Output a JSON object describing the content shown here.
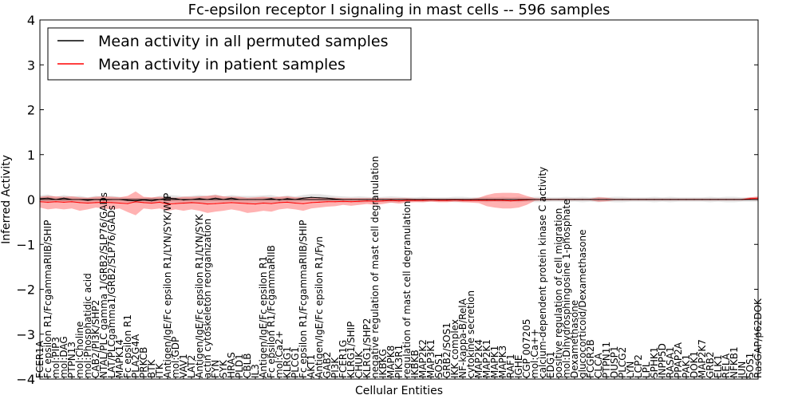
{
  "chart_data": {
    "type": "line",
    "title": "Fc-epsilon receptor I signaling in mast cells -- 596 samples",
    "xlabel": "Cellular Entities",
    "ylabel": "Inferred Activity",
    "ylim": [
      -4,
      4
    ],
    "yticks": [
      "−4",
      "−3",
      "−2",
      "−1",
      "0",
      "1",
      "2",
      "3",
      "4"
    ],
    "legend": {
      "placement": "top-left",
      "entries": [
        {
          "label": "Mean activity in all permuted samples",
          "color": "#000000"
        },
        {
          "label": "Mean activity in patient samples",
          "color": "#ff0000"
        }
      ]
    },
    "categories": [
      "FCER1A",
      "Fc epsilon R1/FcgammaRIIB/SHIP",
      "mol:PIP3",
      "mol:DAG",
      "PTPN13",
      "mol:Choline",
      "mol:Phosphatidic acid",
      "CAB2/PI3K/SHP2",
      "NTAL/PLC gamma 1/GRB2/SLP76/GADs",
      "LAT/PLCgamma1/GRB2/SLP76/GADs",
      "MAPK14",
      "Fc epsilon R1",
      "PLA2G4A",
      "PRKCB",
      "BTK",
      "ITK",
      "Antigen/IgE/Fc epsilon R1/LYN/SYK/WIP",
      "mol:GDP",
      "VAV1",
      "LAT2",
      "Antigen/IgE/Fc epsilon R1/LYN/SYK",
      "actin cytoskeleton reorganization",
      "FYN",
      "SYK",
      "HRAS",
      "PLD1",
      "CBLB",
      "IL3",
      "Antigen/IgE/Fc epsilon R1",
      "Fc epsilon R1/FcgammaRIIB",
      "mol:Ca2+",
      "KLRG1",
      "PLCG1",
      "Fc epsilon R1/FcgammaRIIB/SHIP",
      "AKT1",
      "Antigen/IgE/Fc epsilon R1/Fyn",
      "GAB2",
      "PI3K",
      "FCER1G",
      "KLRG1/SHIP",
      "CHUK",
      "KLRG1/SHP2",
      "negative regulation of mast cell degranulation",
      "IKBKG",
      "MAPK8",
      "PIK3R1",
      "regulation of mast cell degranulation",
      "IKBKB",
      "MAP2K2",
      "MAP3K1",
      "SOS1",
      "GRB2/SOS1",
      "IKK complex",
      "NF-kappa-B/RelA",
      "cytokine secretion",
      "MAP2K4",
      "MAP2K1",
      "MAPK1",
      "MAPK3",
      "RAF1",
      "IGHE",
      "CGP 007205",
      "mol:Ca++",
      "calcium-dependent protein kinase C activity",
      "EDG1",
      "positive regulation of cell migration",
      "mol:Dihydrosphingosine 1-phosphate",
      "Dexamethasone",
      "glucocorticoid/Dexamethasone",
      "FCGR2B",
      "CLCA",
      "PTPN11",
      "DUSP1",
      "PLCG2",
      "LYN",
      "LCP2",
      "LPL",
      "SPHK1",
      "INPP5D",
      "RASA1",
      "PPAP2A",
      "PAK1",
      "DOK1",
      "MAP2K7",
      "GRB2",
      "ELK1",
      "RELA",
      "NFKB1",
      "JUN",
      "SOS1",
      "RasGAP/p62DOK"
    ],
    "visible_tick_labels": [
      "FCER1A",
      "Fc epsilon R1/FcgammaRIIB/SHIP",
      "mol:PIP3",
      "mol:DAG",
      "PTPN13",
      "mol:Choline",
      "mol:Phosphatidic acid",
      "CAB2/PI3K/SHP2",
      "NTAL/PLC gamma 1/GRB2/SLP76/GADs",
      "LAT/PLCgamma1/GRB2/SLP76/GADs",
      "MAPK14",
      "Fc epsilon R1",
      "PLA2G4A",
      "PRKCB",
      "BTK",
      "ITK",
      "Antigen/IgE/Fc epsilon R1/LYN/SYK/WIP",
      "mol:GDP",
      "VAV1",
      "LAT2",
      "Antigen/IgE/Fc epsilon R1/LYN/SYK",
      "actin cytoskeleton reorganization",
      "FYN",
      "SYK",
      "HRAS",
      "PLD1",
      "CBLB",
      "IL3",
      "Antigen/IgE/Fc epsilon R1",
      "Fc epsilon R1/FcgammaRIIB",
      "mol:Ca2+",
      "KLRG1",
      "PLCG1",
      "Fc epsilon R1/FcgammaRIIB/SHIP",
      "AKT1",
      "Antigen/IgE/Fc epsilon R1/Fyn",
      "GAB2",
      "PI3K",
      "FCER1G",
      "KLRG1/SHIP",
      "CHUK",
      "KLRG1/SHP2",
      "negative regulation of mast cell degranulation",
      "IKBKG",
      "MAPK8",
      "PIK3R1",
      "regulation of mast cell degranulation",
      "IKBKB",
      "MAP2K2",
      "MAP3K1",
      "SOS1",
      "GRB2/SOS1",
      "IKK complex",
      "NF-kappa-B/RelA",
      "cytokine secretion",
      "MAP2K4",
      "MAP2K1",
      "MAPK1",
      "MAPK3",
      "RAF1",
      "IGHE",
      "CGP 007205",
      "mol:Ca++",
      "calcium-dependent protein kinase C activity",
      "EDG1",
      "positive regulation of cell migration",
      "mol:Dihydrosphingosine 1-phosphate",
      "Dexamethasone",
      "glucocorticoid/Dexamethasone",
      "FCGR2B",
      "CLCA",
      "PTPN11",
      "DUSP1",
      "PLCG2",
      "LYN",
      "LCP2",
      "LPL",
      "SPHK1",
      "INPP5D",
      "RASA1",
      "PPAP2A",
      "PAK1",
      "DOK1",
      "MAP2K7",
      "GRB2",
      "ELK1",
      "RELA",
      "NFKB1",
      "JUN",
      "SOS1",
      "RasGAP/p62DOK"
    ],
    "series": [
      {
        "name": "Mean activity in all permuted samples",
        "color": "#000000",
        "values": [
          0.02,
          0.03,
          0.0,
          0.03,
          0.0,
          0.0,
          -0.02,
          0.0,
          -0.01,
          0.0,
          0.0,
          -0.02,
          -0.03,
          -0.01,
          -0.03,
          0.0,
          0.03,
          0.02,
          -0.01,
          0.0,
          0.02,
          0.0,
          0.03,
          0.0,
          0.03,
          0.0,
          0.0,
          0.0,
          0.0,
          0.02,
          -0.01,
          0.02,
          0.0,
          0.03,
          0.05,
          0.04,
          0.03,
          0.01,
          0.0,
          0.0,
          0.0,
          0.0,
          0.0,
          0.0,
          0.0,
          0.0,
          0.0,
          0.0,
          0.0,
          0.0,
          0.0,
          0.0,
          0.0,
          0.0,
          0.0,
          0.0,
          0.0,
          0.0,
          0.0,
          0.0,
          0.0,
          0.0,
          0.0,
          0.0,
          0.0,
          0.0,
          0.0,
          0.0,
          0.0,
          0.0,
          0.0,
          0.0,
          0.0,
          0.0,
          0.0,
          0.0,
          0.0,
          0.0,
          0.0,
          0.0,
          0.0,
          0.0,
          0.0,
          0.0,
          0.0,
          0.0,
          0.0,
          0.0,
          0.0,
          0.0,
          0.0
        ],
        "lower": [
          -0.05,
          -0.08,
          -0.06,
          -0.05,
          -0.07,
          -0.08,
          -0.08,
          -0.08,
          -0.09,
          -0.08,
          -0.06,
          -0.07,
          -0.08,
          -0.08,
          -0.1,
          -0.08,
          -0.06,
          -0.07,
          -0.1,
          -0.09,
          -0.07,
          -0.08,
          -0.06,
          -0.07,
          -0.05,
          -0.08,
          -0.08,
          -0.08,
          -0.09,
          -0.07,
          -0.08,
          -0.06,
          -0.07,
          -0.05,
          -0.04,
          -0.05,
          -0.05,
          -0.06,
          -0.07,
          -0.06,
          -0.07,
          -0.06,
          -0.05,
          -0.06,
          -0.07,
          -0.06,
          -0.05,
          -0.05,
          -0.06,
          -0.05,
          -0.05,
          -0.05,
          -0.06,
          -0.06,
          -0.05,
          -0.05,
          -0.06,
          -0.05,
          -0.06,
          -0.05,
          -0.06,
          -0.05,
          -0.06,
          -0.06,
          -0.05,
          -0.05,
          -0.06,
          -0.05,
          -0.06,
          -0.05,
          -0.06,
          -0.05,
          -0.06,
          -0.06,
          -0.05,
          -0.05,
          -0.05,
          -0.06,
          -0.05,
          -0.06,
          -0.05,
          -0.05,
          -0.05,
          -0.05,
          -0.06,
          -0.05,
          -0.06,
          -0.06,
          -0.05,
          -0.05,
          -0.05
        ],
        "upper": [
          0.09,
          0.11,
          0.06,
          0.1,
          0.07,
          0.08,
          0.05,
          0.08,
          0.07,
          0.08,
          0.06,
          0.04,
          0.03,
          0.05,
          0.04,
          0.08,
          0.1,
          0.09,
          0.07,
          0.08,
          0.1,
          0.08,
          0.11,
          0.07,
          0.1,
          0.08,
          0.08,
          0.08,
          0.09,
          0.1,
          0.06,
          0.09,
          0.07,
          0.1,
          0.12,
          0.12,
          0.1,
          0.08,
          0.07,
          0.06,
          0.07,
          0.06,
          0.05,
          0.06,
          0.07,
          0.06,
          0.05,
          0.05,
          0.06,
          0.05,
          0.05,
          0.05,
          0.06,
          0.06,
          0.05,
          0.05,
          0.06,
          0.05,
          0.06,
          0.05,
          0.06,
          0.05,
          0.06,
          0.06,
          0.05,
          0.05,
          0.06,
          0.05,
          0.06,
          0.05,
          0.06,
          0.05,
          0.06,
          0.06,
          0.05,
          0.05,
          0.05,
          0.06,
          0.05,
          0.06,
          0.05,
          0.05,
          0.05,
          0.05,
          0.06,
          0.05,
          0.06,
          0.06,
          0.05,
          0.05,
          0.05
        ]
      },
      {
        "name": "Mean activity in patient samples",
        "color": "#ff0000",
        "values": [
          -0.05,
          -0.06,
          -0.05,
          -0.06,
          -0.05,
          -0.07,
          -0.08,
          -0.07,
          -0.06,
          -0.07,
          -0.08,
          -0.09,
          -0.05,
          -0.07,
          -0.08,
          -0.06,
          -0.1,
          -0.09,
          -0.08,
          -0.07,
          -0.08,
          -0.1,
          -0.09,
          -0.08,
          -0.07,
          -0.08,
          -0.09,
          -0.1,
          -0.08,
          -0.09,
          -0.07,
          -0.06,
          -0.08,
          -0.09,
          -0.07,
          -0.06,
          -0.05,
          -0.05,
          -0.04,
          -0.05,
          -0.04,
          -0.03,
          -0.04,
          -0.03,
          -0.02,
          -0.03,
          -0.02,
          -0.02,
          -0.02,
          -0.01,
          -0.02,
          -0.02,
          -0.01,
          -0.02,
          -0.02,
          -0.02,
          -0.02,
          -0.02,
          -0.02,
          -0.03,
          -0.02,
          -0.01,
          0.0,
          0.0,
          0.0,
          0.0,
          0.0,
          0.0,
          0.0,
          0.0,
          0.0,
          0.0,
          0.0,
          0.0,
          0.0,
          0.0,
          0.0,
          0.0,
          0.0,
          0.0,
          0.0,
          0.0,
          0.0,
          0.0,
          0.0,
          0.0,
          0.0,
          0.0,
          0.0,
          0.02,
          0.03
        ],
        "lower": [
          -0.18,
          -0.22,
          -0.2,
          -0.22,
          -0.2,
          -0.25,
          -0.22,
          -0.18,
          -0.2,
          -0.22,
          -0.2,
          -0.28,
          -0.35,
          -0.2,
          -0.22,
          -0.2,
          -0.25,
          -0.22,
          -0.25,
          -0.22,
          -0.25,
          -0.3,
          -0.27,
          -0.25,
          -0.22,
          -0.25,
          -0.3,
          -0.28,
          -0.25,
          -0.27,
          -0.22,
          -0.2,
          -0.22,
          -0.25,
          -0.2,
          -0.18,
          -0.16,
          -0.15,
          -0.12,
          -0.14,
          -0.12,
          -0.1,
          -0.12,
          -0.1,
          -0.07,
          -0.09,
          -0.07,
          -0.06,
          -0.06,
          -0.05,
          -0.06,
          -0.06,
          -0.05,
          -0.06,
          -0.07,
          -0.08,
          -0.15,
          -0.18,
          -0.2,
          -0.2,
          -0.18,
          -0.12,
          -0.03,
          -0.02,
          -0.02,
          -0.02,
          -0.02,
          -0.02,
          -0.02,
          -0.02,
          -0.05,
          -0.04,
          -0.02,
          -0.02,
          -0.02,
          -0.02,
          -0.02,
          -0.02,
          -0.02,
          -0.02,
          -0.02,
          -0.02,
          -0.02,
          -0.02,
          -0.02,
          -0.02,
          -0.02,
          -0.02,
          -0.02,
          -0.01,
          -0.02
        ],
        "upper": [
          0.06,
          0.08,
          0.07,
          0.06,
          0.07,
          0.05,
          0.04,
          0.06,
          0.07,
          0.06,
          0.05,
          0.08,
          0.18,
          0.06,
          0.05,
          0.06,
          0.05,
          0.04,
          0.06,
          0.06,
          0.07,
          0.08,
          0.1,
          0.07,
          0.06,
          0.06,
          0.04,
          0.05,
          0.06,
          0.05,
          0.06,
          0.07,
          0.05,
          0.05,
          0.05,
          0.05,
          0.04,
          0.04,
          0.03,
          0.03,
          0.03,
          0.03,
          0.03,
          0.03,
          0.03,
          0.03,
          0.03,
          0.02,
          0.02,
          0.02,
          0.02,
          0.02,
          0.02,
          0.02,
          0.02,
          0.04,
          0.1,
          0.14,
          0.15,
          0.15,
          0.14,
          0.08,
          0.03,
          0.02,
          0.02,
          0.02,
          0.02,
          0.02,
          0.02,
          0.02,
          0.05,
          0.04,
          0.02,
          0.02,
          0.02,
          0.02,
          0.02,
          0.02,
          0.02,
          0.02,
          0.02,
          0.02,
          0.02,
          0.02,
          0.02,
          0.02,
          0.02,
          0.02,
          0.02,
          0.05,
          0.07
        ]
      }
    ]
  }
}
